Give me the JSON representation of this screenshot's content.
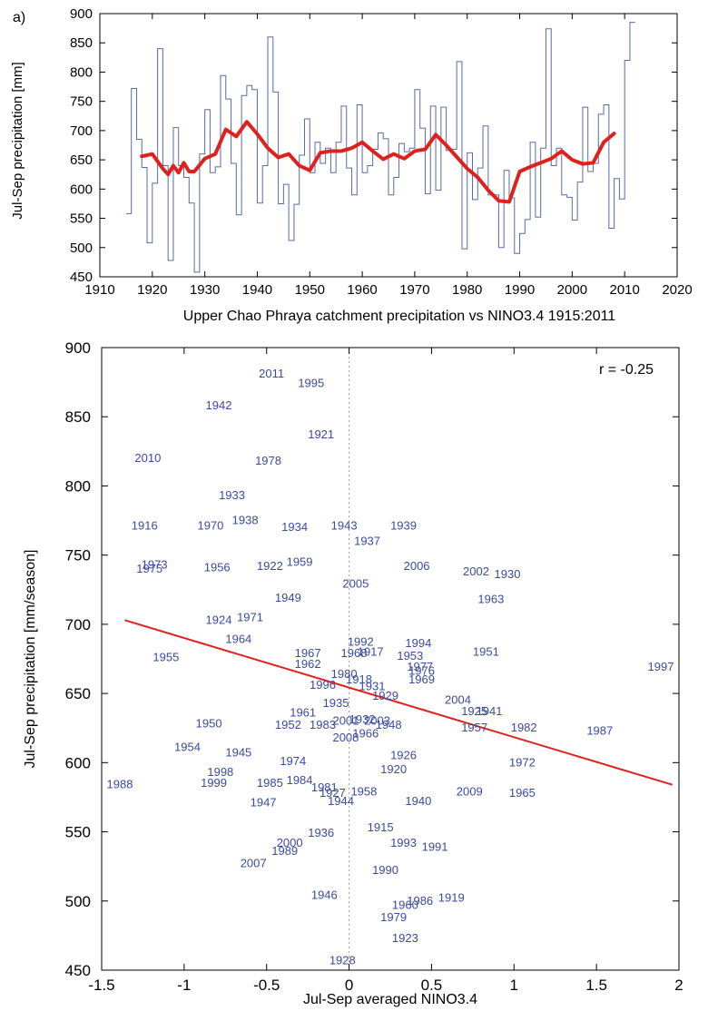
{
  "panel_label": "a)",
  "colors": {
    "series": "#5a6aa8",
    "smooth": "#e0201b",
    "point_text": "#3a4aa0",
    "fit": "#e0201b",
    "zero_line": "#9aa0b0",
    "axis": "#000000"
  },
  "chart_data": [
    {
      "type": "line",
      "ylabel": "Jul-Sep precipitation [mm]",
      "xlabel": "",
      "xlim": [
        1910,
        2020
      ],
      "ylim": [
        450,
        900
      ],
      "xticks": [
        "1910",
        "1920",
        "1930",
        "1940",
        "1950",
        "1960",
        "1970",
        "1980",
        "1990",
        "2000",
        "2010",
        "2020"
      ],
      "yticks": [
        "450",
        "500",
        "550",
        "600",
        "650",
        "700",
        "750",
        "800",
        "850",
        "900"
      ],
      "series": [
        {
          "style": "step",
          "x": [
            1915,
            1916,
            1917,
            1918,
            1919,
            1920,
            1921,
            1922,
            1923,
            1924,
            1925,
            1926,
            1927,
            1928,
            1929,
            1930,
            1931,
            1932,
            1933,
            1934,
            1935,
            1936,
            1937,
            1938,
            1939,
            1940,
            1941,
            1942,
            1943,
            1944,
            1945,
            1946,
            1947,
            1948,
            1949,
            1950,
            1951,
            1952,
            1953,
            1954,
            1955,
            1956,
            1957,
            1958,
            1959,
            1960,
            1961,
            1962,
            1963,
            1964,
            1965,
            1966,
            1967,
            1968,
            1969,
            1970,
            1971,
            1972,
            1973,
            1974,
            1975,
            1976,
            1977,
            1978,
            1979,
            1980,
            1981,
            1982,
            1983,
            1984,
            1985,
            1986,
            1987,
            1988,
            1989,
            1990,
            1991,
            1992,
            1993,
            1994,
            1995,
            1996,
            1997,
            1998,
            1999,
            2000,
            2001,
            2002,
            2003,
            2004,
            2005,
            2006,
            2007,
            2008,
            2009,
            2010,
            2011
          ],
          "y": [
            558,
            772,
            685,
            637,
            508,
            610,
            840,
            640,
            478,
            705,
            640,
            620,
            576,
            458,
            660,
            736,
            628,
            638,
            794,
            754,
            644,
            556,
            760,
            777,
            770,
            576,
            640,
            860,
            766,
            575,
            608,
            512,
            574,
            658,
            720,
            628,
            680,
            644,
            670,
            628,
            680,
            742,
            636,
            590,
            744,
            628,
            640,
            668,
            696,
            686,
            590,
            620,
            678,
            664,
            670,
            770,
            704,
            592,
            742,
            598,
            740,
            666,
            668,
            818,
            498,
            662,
            582,
            636,
            708,
            590,
            590,
            500,
            632,
            585,
            490,
            524,
            548,
            680,
            552,
            670,
            874,
            640,
            670,
            590,
            586,
            547,
            612,
            740,
            630,
            644,
            728,
            744,
            533,
            618,
            583,
            820,
            885
          ]
        },
        {
          "style": "smooth",
          "x": [
            1918,
            1920,
            1922,
            1923,
            1924,
            1925,
            1926,
            1927,
            1928,
            1930,
            1932,
            1934,
            1936,
            1938,
            1940,
            1942,
            1944,
            1946,
            1948,
            1950,
            1952,
            1954,
            1956,
            1958,
            1960,
            1962,
            1964,
            1966,
            1968,
            1970,
            1972,
            1974,
            1976,
            1978,
            1980,
            1982,
            1984,
            1986,
            1988,
            1990,
            1992,
            1994,
            1996,
            1998,
            2000,
            2002,
            2004,
            2006,
            2008
          ],
          "y": [
            656,
            660,
            635,
            625,
            640,
            628,
            645,
            630,
            630,
            652,
            660,
            702,
            690,
            715,
            694,
            670,
            654,
            660,
            640,
            632,
            662,
            665,
            665,
            670,
            680,
            665,
            651,
            660,
            652,
            665,
            668,
            693,
            675,
            655,
            635,
            620,
            598,
            580,
            578,
            630,
            638,
            645,
            652,
            665,
            650,
            643,
            645,
            680,
            695
          ]
        }
      ]
    },
    {
      "type": "scatter",
      "title": "Upper Chao Phraya catchment precipitation vs NINO3.4 1915:2011",
      "xlabel": "Jul-Sep averaged NINO3.4",
      "ylabel": "Jul-Sep precipitation [mm/season]",
      "xlim": [
        -1.5,
        2
      ],
      "ylim": [
        450,
        900
      ],
      "xticks": [
        "-1.5",
        "-1",
        "-0.5",
        "0",
        "0.5",
        "1",
        "1.5",
        "2"
      ],
      "yticks": [
        "450",
        "500",
        "550",
        "600",
        "650",
        "700",
        "750",
        "800",
        "850",
        "900"
      ],
      "annotation": "r = -0.25",
      "fit_line": {
        "x": [
          -1.36,
          1.96
        ],
        "y": [
          703,
          584
        ]
      },
      "zero_line_x": 0,
      "points": [
        {
          "label": "2011",
          "x": -0.47,
          "y": 881
        },
        {
          "label": "1995",
          "x": -0.23,
          "y": 874
        },
        {
          "label": "1942",
          "x": -0.79,
          "y": 858
        },
        {
          "label": "1921",
          "x": -0.17,
          "y": 837
        },
        {
          "label": "2010",
          "x": -1.22,
          "y": 820
        },
        {
          "label": "1978",
          "x": -0.49,
          "y": 818
        },
        {
          "label": "1933",
          "x": -0.71,
          "y": 793
        },
        {
          "label": "1938",
          "x": -0.63,
          "y": 775
        },
        {
          "label": "1916",
          "x": -1.24,
          "y": 771
        },
        {
          "label": "1970",
          "x": -0.84,
          "y": 771
        },
        {
          "label": "1934",
          "x": -0.33,
          "y": 770
        },
        {
          "label": "1943",
          "x": -0.03,
          "y": 771
        },
        {
          "label": "1939",
          "x": 0.33,
          "y": 771
        },
        {
          "label": "1937",
          "x": 0.11,
          "y": 760
        },
        {
          "label": "1973",
          "x": -1.18,
          "y": 743
        },
        {
          "label": "1975",
          "x": -1.21,
          "y": 740
        },
        {
          "label": "1956",
          "x": -0.8,
          "y": 741
        },
        {
          "label": "1922",
          "x": -0.48,
          "y": 742
        },
        {
          "label": "1959",
          "x": -0.3,
          "y": 745
        },
        {
          "label": "2006",
          "x": 0.41,
          "y": 742
        },
        {
          "label": "2002",
          "x": 0.77,
          "y": 738
        },
        {
          "label": "1930",
          "x": 0.96,
          "y": 736
        },
        {
          "label": "2005",
          "x": 0.04,
          "y": 729
        },
        {
          "label": "1963",
          "x": 0.86,
          "y": 718
        },
        {
          "label": "1949",
          "x": -0.37,
          "y": 719
        },
        {
          "label": "1924",
          "x": -0.79,
          "y": 703
        },
        {
          "label": "1971",
          "x": -0.6,
          "y": 705
        },
        {
          "label": "1964",
          "x": -0.67,
          "y": 689
        },
        {
          "label": "1992",
          "x": 0.07,
          "y": 687
        },
        {
          "label": "1994",
          "x": 0.42,
          "y": 686
        },
        {
          "label": "1967",
          "x": -0.25,
          "y": 679
        },
        {
          "label": "1968",
          "x": 0.03,
          "y": 679
        },
        {
          "label": "1917",
          "x": 0.13,
          "y": 680
        },
        {
          "label": "1953",
          "x": 0.37,
          "y": 677
        },
        {
          "label": "1951",
          "x": 0.83,
          "y": 680
        },
        {
          "label": "1955",
          "x": -1.11,
          "y": 676
        },
        {
          "label": "1962",
          "x": -0.25,
          "y": 671
        },
        {
          "label": "1977",
          "x": 0.43,
          "y": 669
        },
        {
          "label": "1976",
          "x": 0.44,
          "y": 666
        },
        {
          "label": "1969",
          "x": 0.44,
          "y": 660
        },
        {
          "label": "1997",
          "x": 1.89,
          "y": 669
        },
        {
          "label": "1980",
          "x": -0.03,
          "y": 664
        },
        {
          "label": "1918",
          "x": 0.06,
          "y": 660
        },
        {
          "label": "1996",
          "x": -0.16,
          "y": 656
        },
        {
          "label": "1931",
          "x": 0.14,
          "y": 655
        },
        {
          "label": "1929",
          "x": 0.22,
          "y": 648
        },
        {
          "label": "1935",
          "x": -0.08,
          "y": 643
        },
        {
          "label": "2004",
          "x": 0.66,
          "y": 645
        },
        {
          "label": "1925",
          "x": 0.76,
          "y": 637
        },
        {
          "label": "1941",
          "x": 0.85,
          "y": 637
        },
        {
          "label": "1961",
          "x": -0.28,
          "y": 636
        },
        {
          "label": "1957",
          "x": 0.76,
          "y": 625
        },
        {
          "label": "1982",
          "x": 1.06,
          "y": 625
        },
        {
          "label": "1987",
          "x": 1.52,
          "y": 623
        },
        {
          "label": "1950",
          "x": -0.85,
          "y": 628
        },
        {
          "label": "1952",
          "x": -0.37,
          "y": 627
        },
        {
          "label": "1983",
          "x": -0.16,
          "y": 627
        },
        {
          "label": "2001",
          "x": -0.02,
          "y": 630
        },
        {
          "label": "1932",
          "x": 0.08,
          "y": 631
        },
        {
          "label": "2003",
          "x": 0.17,
          "y": 630
        },
        {
          "label": "1948",
          "x": 0.24,
          "y": 627
        },
        {
          "label": "1966",
          "x": 0.1,
          "y": 621
        },
        {
          "label": "2008",
          "x": -0.02,
          "y": 618
        },
        {
          "label": "1926",
          "x": 0.33,
          "y": 605
        },
        {
          "label": "1920",
          "x": 0.27,
          "y": 595
        },
        {
          "label": "1954",
          "x": -0.98,
          "y": 611
        },
        {
          "label": "1945",
          "x": -0.67,
          "y": 607
        },
        {
          "label": "1974",
          "x": -0.34,
          "y": 601
        },
        {
          "label": "1972",
          "x": 1.05,
          "y": 600
        },
        {
          "label": "1998",
          "x": -0.78,
          "y": 593
        },
        {
          "label": "1999",
          "x": -0.82,
          "y": 585
        },
        {
          "label": "1985",
          "x": -0.48,
          "y": 585
        },
        {
          "label": "1984",
          "x": -0.3,
          "y": 587
        },
        {
          "label": "1981",
          "x": -0.15,
          "y": 582
        },
        {
          "label": "1927",
          "x": -0.1,
          "y": 578
        },
        {
          "label": "1958",
          "x": 0.09,
          "y": 579
        },
        {
          "label": "1988",
          "x": -1.39,
          "y": 584
        },
        {
          "label": "2009",
          "x": 0.73,
          "y": 579
        },
        {
          "label": "1965",
          "x": 1.05,
          "y": 578
        },
        {
          "label": "1947",
          "x": -0.52,
          "y": 571
        },
        {
          "label": "1944",
          "x": -0.05,
          "y": 572
        },
        {
          "label": "1940",
          "x": 0.42,
          "y": 572
        },
        {
          "label": "1915",
          "x": 0.19,
          "y": 553
        },
        {
          "label": "1993",
          "x": 0.33,
          "y": 542
        },
        {
          "label": "1991",
          "x": 0.52,
          "y": 539
        },
        {
          "label": "1936",
          "x": -0.17,
          "y": 549
        },
        {
          "label": "2000",
          "x": -0.36,
          "y": 542
        },
        {
          "label": "1989",
          "x": -0.39,
          "y": 536
        },
        {
          "label": "2007",
          "x": -0.58,
          "y": 527
        },
        {
          "label": "1990",
          "x": 0.22,
          "y": 522
        },
        {
          "label": "1946",
          "x": -0.15,
          "y": 504
        },
        {
          "label": "1919",
          "x": 0.62,
          "y": 502
        },
        {
          "label": "1986",
          "x": 0.43,
          "y": 500
        },
        {
          "label": "1960",
          "x": 0.34,
          "y": 497
        },
        {
          "label": "1979",
          "x": 0.27,
          "y": 488
        },
        {
          "label": "1923",
          "x": 0.34,
          "y": 473
        },
        {
          "label": "1928",
          "x": -0.04,
          "y": 457
        }
      ]
    }
  ]
}
